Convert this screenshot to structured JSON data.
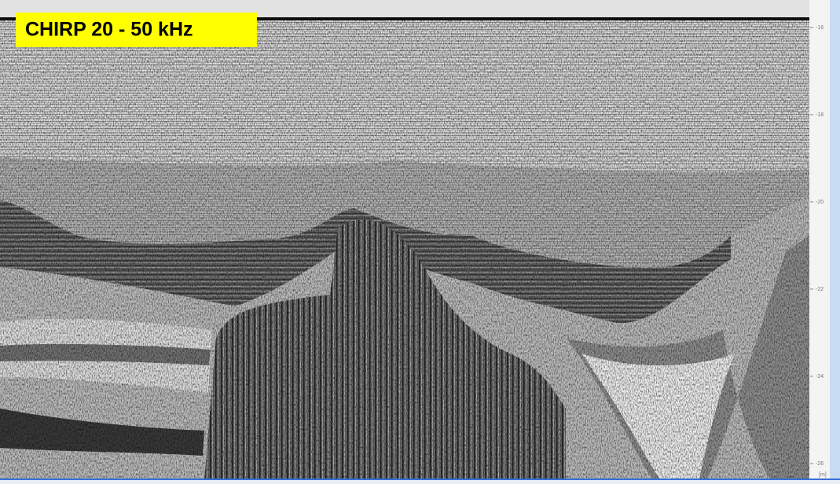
{
  "label": "CHIRP 20 - 50 kHz",
  "depth_axis": {
    "ticks": [
      -16,
      -18,
      -20,
      -22,
      -24,
      -26
    ],
    "ylim": [
      -26.47,
      -15.37
    ],
    "unit": "[m]"
  }
}
